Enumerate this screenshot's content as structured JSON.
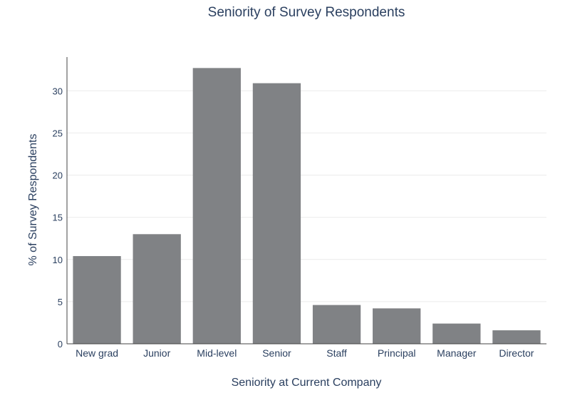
{
  "chart_data": {
    "type": "bar",
    "title": "Seniority of Survey Respondents",
    "xlabel": "Seniority at Current Company",
    "ylabel": "% of Survey Respondents",
    "categories": [
      "New grad",
      "Junior",
      "Mid-level",
      "Senior",
      "Staff",
      "Principal",
      "Manager",
      "Director"
    ],
    "values": [
      10.4,
      13.0,
      32.7,
      30.9,
      4.6,
      4.2,
      2.4,
      1.6
    ],
    "ylim": [
      0,
      34
    ],
    "yticks": [
      0,
      5,
      10,
      15,
      20,
      25,
      30
    ],
    "grid": true,
    "legend": "none",
    "bar_color": "#808285",
    "text_color": "#2a3f5f",
    "grid_color": "#ebebeb",
    "axis_color": "#444444"
  }
}
